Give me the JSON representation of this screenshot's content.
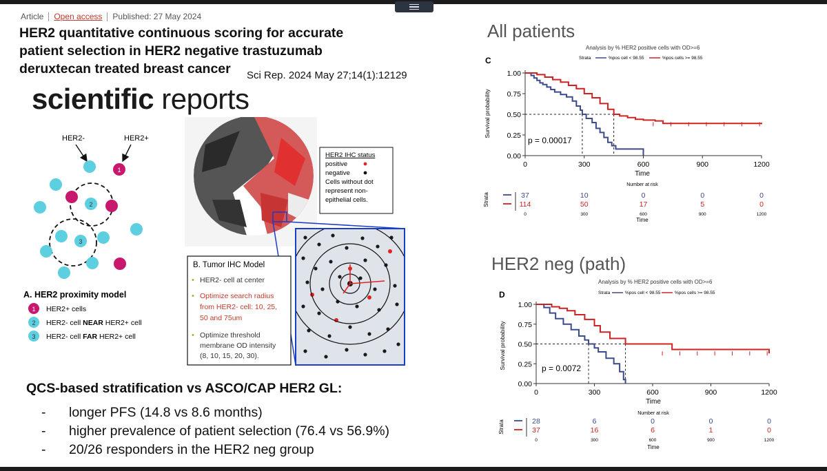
{
  "meta": {
    "type": "Article",
    "access": "Open access",
    "published": "Published: 27 May 2024"
  },
  "paper_title": "HER2 quantitative continuous scoring for accurate patient selection in HER2 negative trastuzumab deruxtecan treated breast cancer",
  "citation": "Sci Rep. 2024 May 27;14(1):12129",
  "journal": {
    "bold": "scientific",
    "regular": " reports"
  },
  "proximity_model": {
    "label_neg": "HER2-",
    "label_pos": "HER2+",
    "title": "A. HER2 proximity model",
    "legend": [
      {
        "num": "1",
        "text": "HER2+ cells",
        "bold": "",
        "suffix": ""
      },
      {
        "num": "2",
        "text": "HER2- cell ",
        "bold": "NEAR",
        "suffix": " HER2+ cell"
      },
      {
        "num": "3",
        "text": "HER2- cell ",
        "bold": "FAR",
        "suffix": " HER2+ cell"
      }
    ],
    "markers": [
      "1",
      "2",
      "3"
    ],
    "colors": {
      "pos": "#c8186e",
      "neg": "#5ccfe0"
    }
  },
  "ihc": {
    "status_title": "HER2 IHC status",
    "positive": "positive",
    "negative": "negative",
    "note": [
      "Cells without dot",
      "represent non-",
      "epithelial cells."
    ],
    "model_title": "B. Tumor IHC Model",
    "points": [
      {
        "text": [
          "HER2- cell at center"
        ],
        "color": "#333"
      },
      {
        "text": [
          "Optimize search radius",
          "from HER2- cell: 10, 25,",
          "50 and 75um"
        ],
        "color": "#c0392b"
      },
      {
        "text": [
          "Optimize threshold",
          "membrane OD intensity",
          "(8, 10, 15, 20, 30)."
        ],
        "color": "#333"
      }
    ]
  },
  "summary": {
    "heading": "QCS-based stratification vs ASCO/CAP HER2 GL:",
    "items": [
      "longer PFS (14.8 vs 8.6 months)",
      "higher prevalence of patient selection (76.4 vs 56.9%)",
      "20/26 responders in the HER2 neg group"
    ]
  },
  "chart_data": [
    {
      "type": "line",
      "section": "All patients",
      "panel": "C",
      "title": "Analysis by % HER2 positive cells with OD>=6",
      "legend_label": "Strata",
      "xlabel": "Time",
      "ylabel": "Survival probability",
      "xlim": [
        0,
        1200
      ],
      "ylim": [
        0,
        1
      ],
      "xticks": [
        "0",
        "300",
        "600",
        "900",
        "1200"
      ],
      "yticks": [
        "0.00",
        "0.25",
        "0.50",
        "0.75",
        "1.00"
      ],
      "p_value": "p = 0.00017",
      "medians": [
        290,
        450
      ],
      "series": [
        {
          "name": "%pos cell < 98.55",
          "color": "#3a4a8a",
          "x": [
            0,
            30,
            45,
            60,
            75,
            90,
            110,
            130,
            150,
            180,
            210,
            240,
            260,
            280,
            290,
            310,
            340,
            360,
            380,
            400,
            420,
            440,
            460,
            600
          ],
          "y": [
            1.0,
            0.97,
            0.94,
            0.91,
            0.88,
            0.86,
            0.83,
            0.8,
            0.77,
            0.74,
            0.71,
            0.66,
            0.6,
            0.55,
            0.5,
            0.45,
            0.4,
            0.33,
            0.28,
            0.22,
            0.16,
            0.12,
            0.08,
            0.0
          ]
        },
        {
          "name": "%pos cells >= 98.55",
          "color": "#cc2222",
          "x": [
            0,
            60,
            100,
            140,
            180,
            220,
            260,
            300,
            340,
            380,
            420,
            450,
            480,
            520,
            560,
            600,
            660,
            700,
            1200
          ],
          "y": [
            1.0,
            0.98,
            0.95,
            0.92,
            0.89,
            0.85,
            0.81,
            0.75,
            0.7,
            0.63,
            0.56,
            0.5,
            0.48,
            0.46,
            0.44,
            0.43,
            0.42,
            0.39,
            0.38
          ]
        }
      ],
      "risk_table": {
        "title": "Number at risk",
        "ylabel": "Strata",
        "xlabel": "Time",
        "times": [
          "0",
          "300",
          "600",
          "900",
          "1200"
        ],
        "rows": [
          {
            "values": [
              "37",
              "10",
              "0",
              "0",
              "0"
            ],
            "color": "#3a4a8a"
          },
          {
            "values": [
              "114",
              "50",
              "17",
              "5",
              "0"
            ],
            "color": "#cc2222"
          }
        ]
      }
    },
    {
      "type": "line",
      "section": "HER2 neg (path)",
      "panel": "D",
      "title": "Analysis by % HER2 positive cells with OD>=6",
      "legend_label": "Strata",
      "xlabel": "Time",
      "ylabel": "Survival probability",
      "xlim": [
        0,
        1200
      ],
      "ylim": [
        0,
        1
      ],
      "xticks": [
        "0",
        "300",
        "600",
        "900",
        "1200"
      ],
      "yticks": [
        "0.00",
        "0.25",
        "0.50",
        "0.75",
        "1.00"
      ],
      "p_value": "p = 0.0072",
      "medians": [
        270,
        460
      ],
      "series": [
        {
          "name": "%pos cell < 98.55",
          "color": "#3a4a8a",
          "x": [
            0,
            40,
            70,
            100,
            140,
            180,
            220,
            250,
            270,
            300,
            320,
            360,
            400,
            430,
            450,
            460
          ],
          "y": [
            1.0,
            0.96,
            0.89,
            0.82,
            0.75,
            0.68,
            0.6,
            0.55,
            0.5,
            0.45,
            0.4,
            0.32,
            0.25,
            0.15,
            0.05,
            0.0
          ]
        },
        {
          "name": "%pos cells >= 98.55",
          "color": "#cc2222",
          "x": [
            0,
            80,
            120,
            160,
            200,
            250,
            300,
            330,
            380,
            460,
            700,
            1200
          ],
          "y": [
            1.0,
            0.97,
            0.95,
            0.92,
            0.87,
            0.81,
            0.73,
            0.65,
            0.57,
            0.5,
            0.43,
            0.38
          ]
        }
      ],
      "risk_table": {
        "title": "Number at risk",
        "ylabel": "Strata",
        "xlabel": "Time",
        "times": [
          "0",
          "300",
          "600",
          "900",
          "1200"
        ],
        "rows": [
          {
            "values": [
              "28",
              "6",
              "0",
              "0",
              "0"
            ],
            "color": "#3a4a8a"
          },
          {
            "values": [
              "37",
              "16",
              "6",
              "1",
              "0"
            ],
            "color": "#cc2222"
          }
        ]
      }
    }
  ]
}
